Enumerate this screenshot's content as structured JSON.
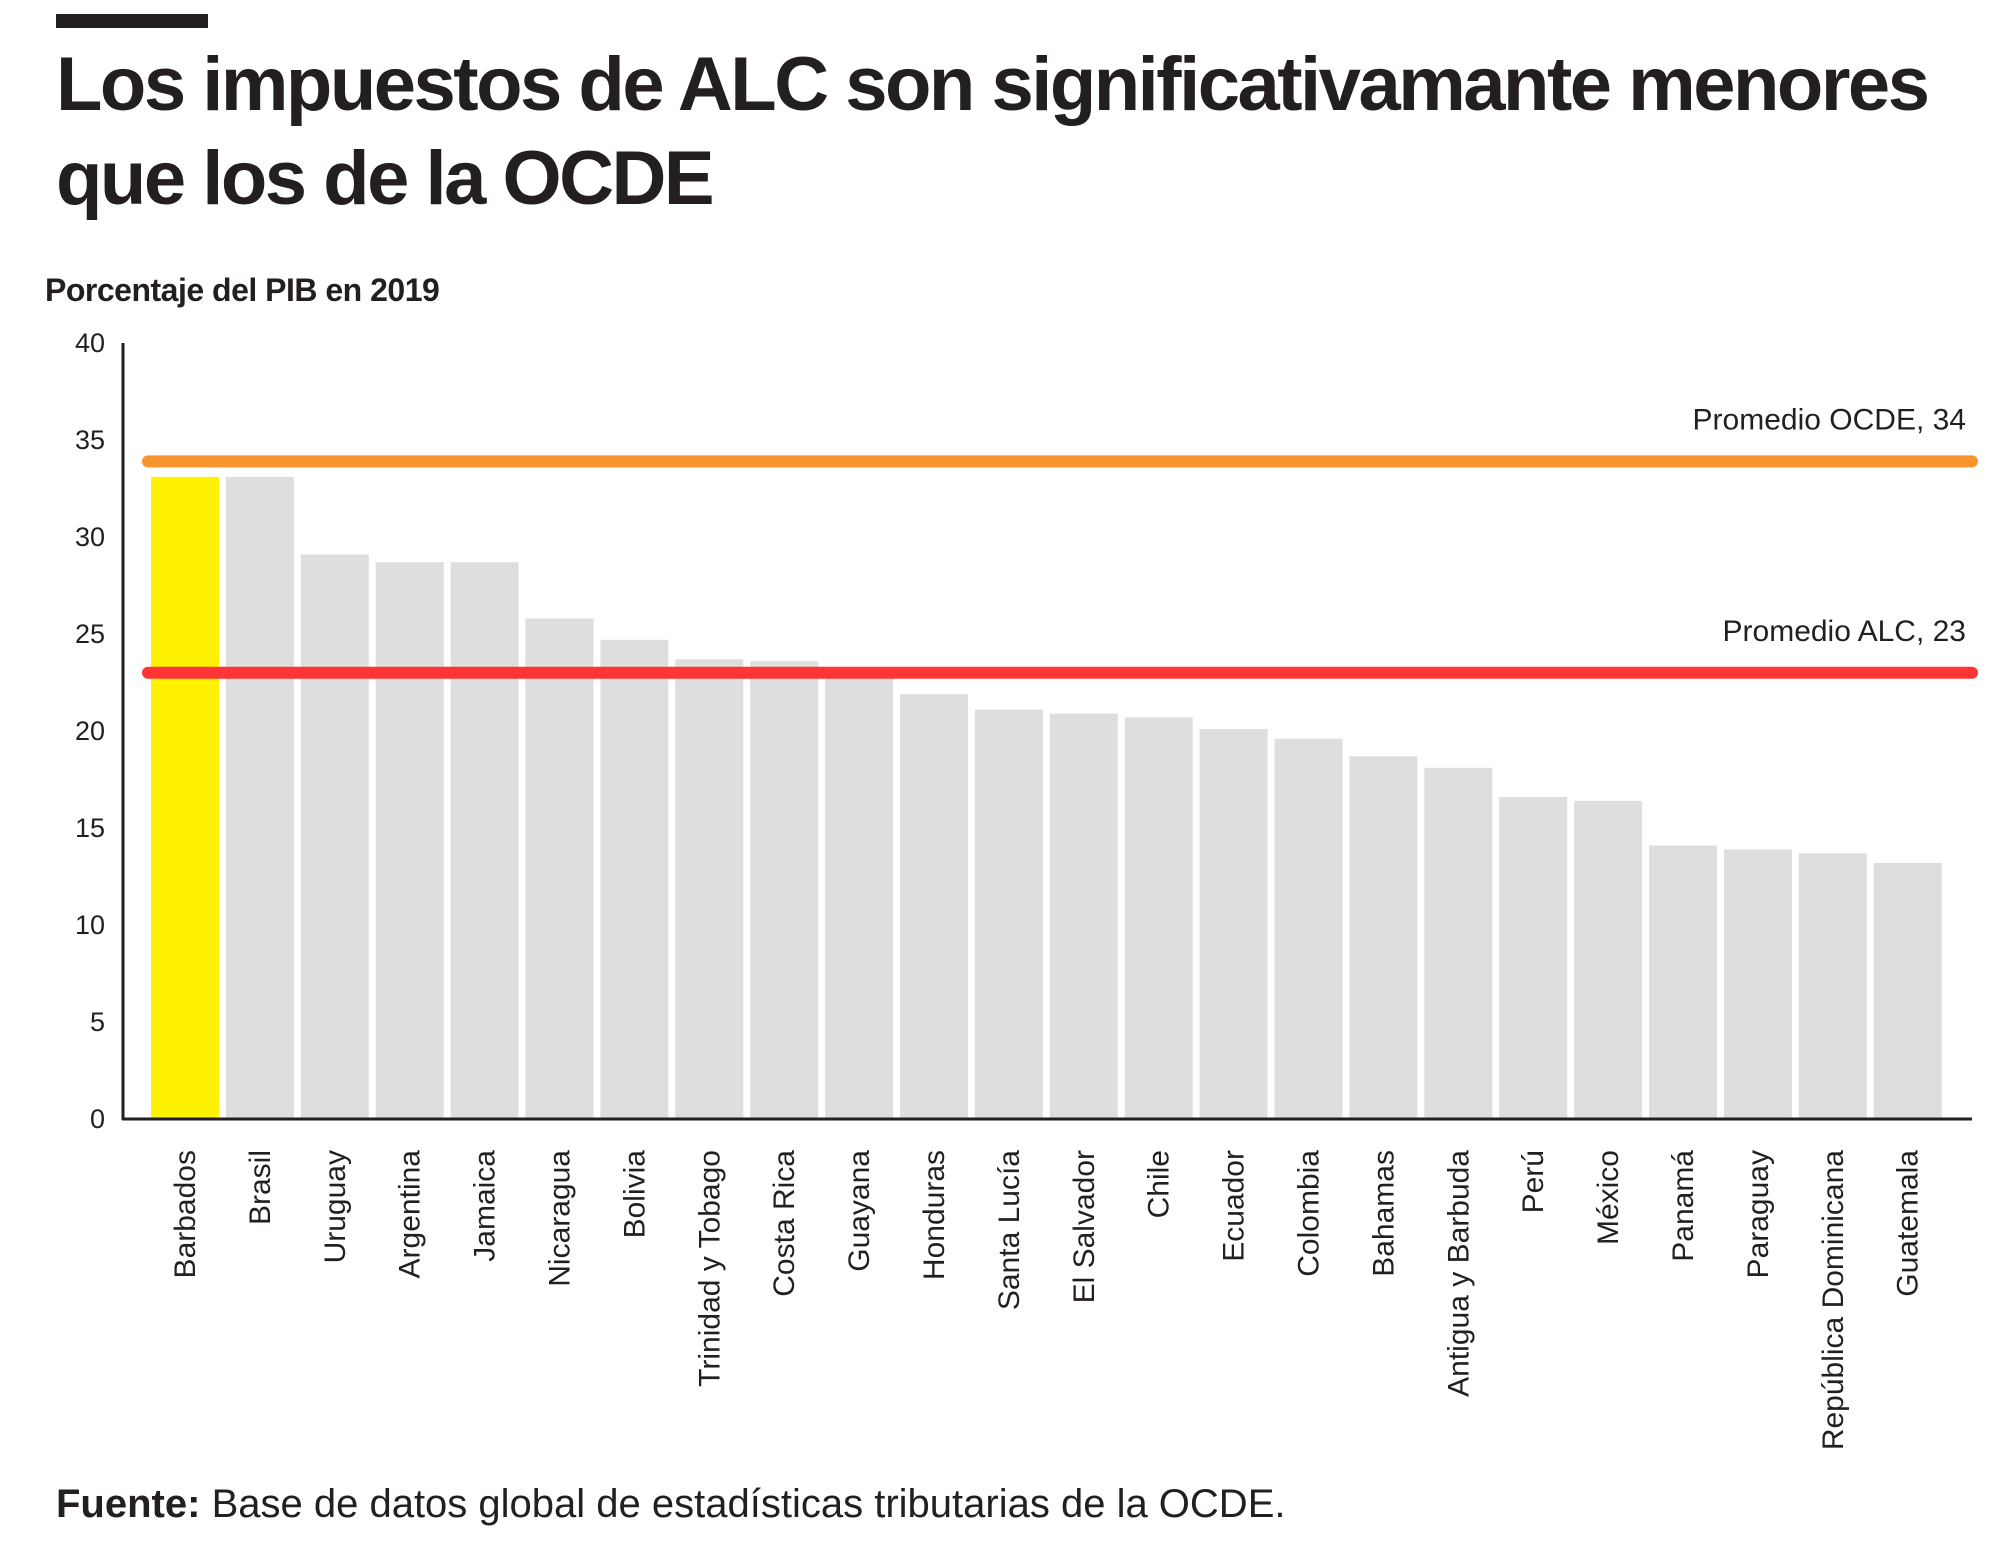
{
  "header": {
    "title": "Los impuestos de ALC son significativamante menores que los de la OCDE",
    "subtitle": "Porcentaje del PIB en 2019"
  },
  "footer": {
    "source_label": "Fuente:",
    "source_text": "Base de datos global de estadísticas tributarias de la OCDE."
  },
  "colors": {
    "highlight": "#fff200",
    "bar": "#dedede",
    "oecd_line": "#f7942d",
    "lac_line": "#ff3434",
    "axis": "#231f20"
  },
  "chart_data": {
    "type": "bar",
    "title": "Los impuestos de ALC son significativamante menores que los de la OCDE",
    "ylabel": "Porcentaje del PIB en 2019",
    "xlabel": "",
    "ylim": [
      0,
      40
    ],
    "yticks": [
      0,
      5,
      10,
      15,
      20,
      25,
      30,
      35,
      40
    ],
    "grid": false,
    "highlight_category": "Barbados",
    "categories": [
      "Barbados",
      "Brasil",
      "Uruguay",
      "Argentina",
      "Jamaica",
      "Nicaragua",
      "Bolivia",
      "Trinidad y Tobago",
      "Costa Rica",
      "Guayana",
      "Honduras",
      "Santa Lucía",
      "El Salvador",
      "Chile",
      "Ecuador",
      "Colombia",
      "Bahamas",
      "Antigua y Barbuda",
      "Perú",
      "México",
      "Panamá",
      "Paraguay",
      "República Dominicana",
      "Guatemala"
    ],
    "values": [
      33.1,
      33.1,
      29.1,
      28.7,
      28.7,
      25.8,
      24.7,
      23.7,
      23.6,
      22.7,
      21.9,
      21.1,
      20.9,
      20.7,
      20.1,
      19.6,
      18.7,
      18.1,
      16.6,
      16.4,
      14.1,
      13.9,
      13.7,
      13.2
    ],
    "reference_lines": [
      {
        "label": "Promedio OCDE, 34",
        "value": 33.9
      },
      {
        "label": "Promedio ALC, 23",
        "value": 23.0
      }
    ]
  }
}
